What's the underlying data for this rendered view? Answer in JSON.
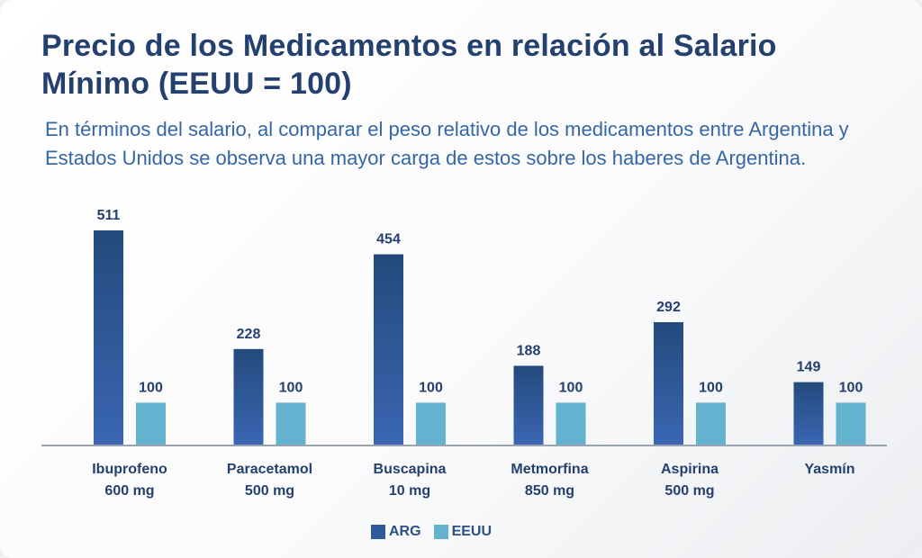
{
  "title": "Precio de los Medicamentos en relación al Salario Mínimo (EEUU = 100)",
  "subtitle": "En términos  del salario, al comparar el peso relativo de los medicamentos entre Argentina y Estados Unidos se observa una mayor carga de estos sobre los haberes de Argentina.",
  "colors": {
    "arg_top": "#244a7c",
    "arg_bottom": "#3a66b3",
    "eeuu": "#63b2d0",
    "label": "#24406f",
    "axis": "#9aa3ad"
  },
  "legend": [
    {
      "label": "ARG",
      "color": "#2f5a9a"
    },
    {
      "label": "EEUU",
      "color": "#63b2d0"
    }
  ],
  "chart_data": {
    "type": "bar",
    "categories": [
      [
        "Ibuprofeno",
        "600 mg"
      ],
      [
        "Paracetamol",
        "500 mg"
      ],
      [
        "Buscapina",
        "10 mg"
      ],
      [
        "Metmorfina",
        "850 mg"
      ],
      [
        "Aspirina",
        "500 mg"
      ],
      [
        "Yasmín"
      ]
    ],
    "series": [
      {
        "name": "ARG",
        "values": [
          511,
          228,
          454,
          188,
          292,
          149
        ]
      },
      {
        "name": "EEUU",
        "values": [
          100,
          100,
          100,
          100,
          100,
          100
        ]
      }
    ],
    "data_labels": true,
    "legend_position": "bottom-center",
    "grid": false,
    "ylim": [
      0,
      511
    ]
  }
}
